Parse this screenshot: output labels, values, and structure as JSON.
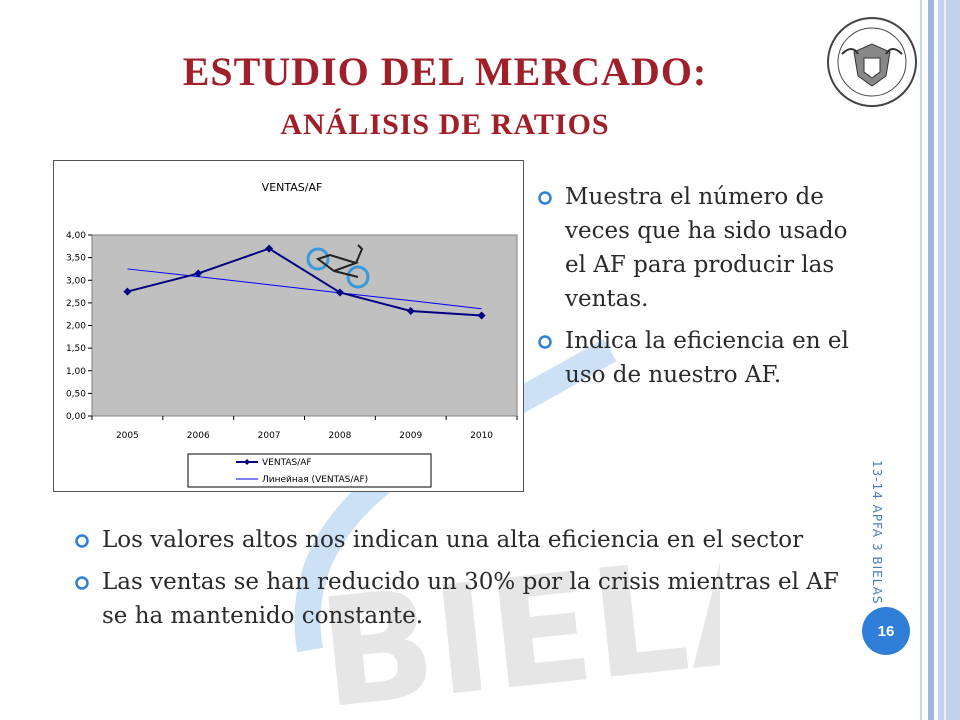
{
  "slide": {
    "title": "ESTUDIO DEL MERCADO:",
    "subtitle": "ANÁLISIS DE RATIOS",
    "right_bullets": [
      "Muestra el número de veces que ha sido usado el AF para producir las ventas.",
      "Indica la eficiencia en el uso de nuestro AF."
    ],
    "bottom_bullets": [
      "Los valores altos nos indican una alta eficiencia en el sector",
      "Las ventas se han reducido un 30% por la crisis mientras el AF se ha mantenido constante."
    ],
    "side_text": "13-14 APFA 3 BIELAS S.R.L",
    "page_number": "16"
  },
  "colors": {
    "title": "#a0202a",
    "accent": "#2f7ed8",
    "series": "#000080",
    "plot_bg": "#c0c0c0"
  },
  "icons": {
    "logo": "university-seal-icon",
    "bullet": "blue-ring-bullet-icon",
    "chart_decoration": "bicycle-icon"
  },
  "chart_data": {
    "type": "line",
    "title": "VENTAS/AF",
    "categories": [
      "2005",
      "2006",
      "2007",
      "2008",
      "2009",
      "2010"
    ],
    "series": [
      {
        "name": "VENTAS/AF",
        "values": [
          2.75,
          3.15,
          3.7,
          2.73,
          2.32,
          2.22
        ],
        "marker": "diamond"
      },
      {
        "name": "Линейная (VENTAS/AF)",
        "values": [
          3.25,
          3.08,
          2.9,
          2.72,
          2.55,
          2.37
        ],
        "marker": "none"
      }
    ],
    "y_ticks": [
      "0,00",
      "0,50",
      "1,00",
      "1,50",
      "2,00",
      "2,50",
      "3,00",
      "3,50",
      "4,00"
    ],
    "ylim": [
      0,
      4
    ],
    "legend": "bottom",
    "grid": false
  }
}
